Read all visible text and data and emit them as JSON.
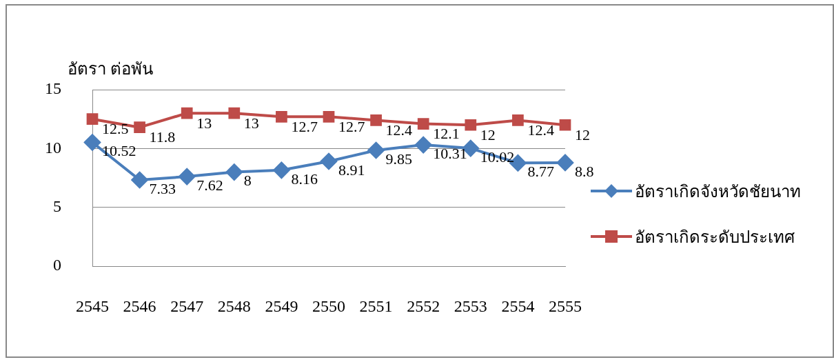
{
  "chart_data": {
    "type": "line",
    "ylabel": "อัตรา ต่อพัน",
    "categories": [
      "2545",
      "2546",
      "2547",
      "2548",
      "2549",
      "2550",
      "2551",
      "2552",
      "2553",
      "2554",
      "2555"
    ],
    "series": [
      {
        "name": "อัตราเกิดจังหวัดชัยนาท",
        "color": "#4a7ebb",
        "marker": "diamond",
        "values": [
          10.52,
          7.33,
          7.62,
          8,
          8.16,
          8.91,
          9.85,
          10.31,
          10.02,
          8.77,
          8.8
        ]
      },
      {
        "name": "อัตราเกิดระดับประเทศ",
        "color": "#be4b48",
        "marker": "square",
        "values": [
          12.5,
          11.8,
          13,
          13,
          12.7,
          12.7,
          12.4,
          12.1,
          12,
          12.4,
          12
        ]
      }
    ],
    "ylim": [
      0,
      15
    ],
    "yticks": [
      0,
      5,
      10,
      15
    ],
    "grid": "y",
    "legend": "right",
    "data_labels": true,
    "line_style": "solid"
  }
}
